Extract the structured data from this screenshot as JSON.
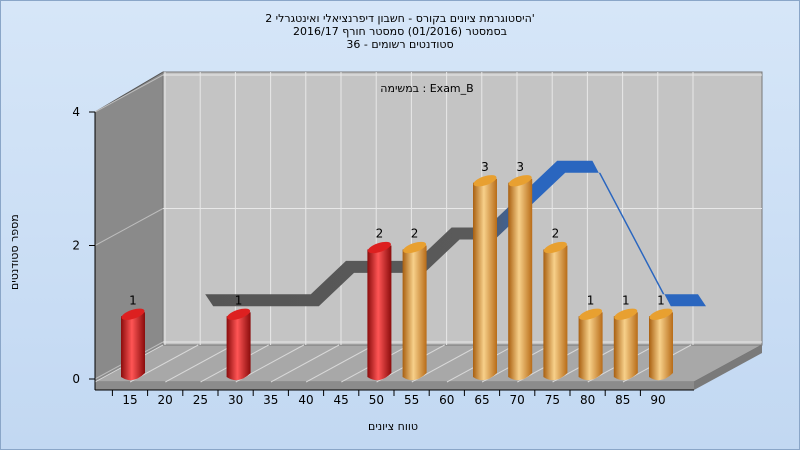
{
  "title": {
    "line1": "היסטוגרמת ציונים בקורס - חשבון דיפרנציאלי ואינטגרלי 2'",
    "line2": "בסמסטר (01/2016) סמסטר חורף 2016/17",
    "line3": "סטודנטים רשומים - 36"
  },
  "chart_data": {
    "type": "bar",
    "subtitle": "במשימה : Exam_B",
    "xlabel": "טווח ציונים",
    "ylabel": "מספר סטודנטים",
    "xticks": [
      "15",
      "20",
      "25",
      "30",
      "35",
      "40",
      "45",
      "50",
      "55",
      "60",
      "65",
      "70",
      "75",
      "80",
      "85",
      "90"
    ],
    "yticks": [
      "0",
      "2",
      "4"
    ],
    "ylim": [
      0,
      4
    ],
    "bars": [
      {
        "x": 15,
        "value": 1,
        "color": "#dd2020"
      },
      {
        "x": 30,
        "value": 1,
        "color": "#dd2020"
      },
      {
        "x": 50,
        "value": 2,
        "color": "#dd2020"
      },
      {
        "x": 55,
        "value": 2,
        "color": "#e8a030"
      },
      {
        "x": 65,
        "value": 3,
        "color": "#e8a030"
      },
      {
        "x": 70,
        "value": 3,
        "color": "#e8a030"
      },
      {
        "x": 75,
        "value": 2,
        "color": "#e8a030"
      },
      {
        "x": 80,
        "value": 1,
        "color": "#e8a030"
      },
      {
        "x": 85,
        "value": 1,
        "color": "#e8a030"
      },
      {
        "x": 90,
        "value": 1,
        "color": "#e8a030"
      }
    ],
    "ribbon": [
      {
        "x": 20,
        "value": 1.0
      },
      {
        "x": 25,
        "value": 1.0
      },
      {
        "x": 30,
        "value": 1.0
      },
      {
        "x": 35,
        "value": 1.0
      },
      {
        "x": 40,
        "value": 1.5
      },
      {
        "x": 45,
        "value": 1.5
      },
      {
        "x": 50,
        "value": 1.5
      },
      {
        "x": 55,
        "value": 2.0
      },
      {
        "x": 60,
        "value": 2.0
      },
      {
        "x": 65,
        "value": 2.5
      },
      {
        "x": 70,
        "value": 3.0
      },
      {
        "x": 75,
        "value": 3.0
      },
      {
        "x": 80,
        "value": 2.0
      },
      {
        "x": 85,
        "value": 1.0
      },
      {
        "x": 90,
        "value": 1.0
      }
    ],
    "ribbon_colors": {
      "low": "#555555",
      "high": "#2a66bf"
    }
  }
}
